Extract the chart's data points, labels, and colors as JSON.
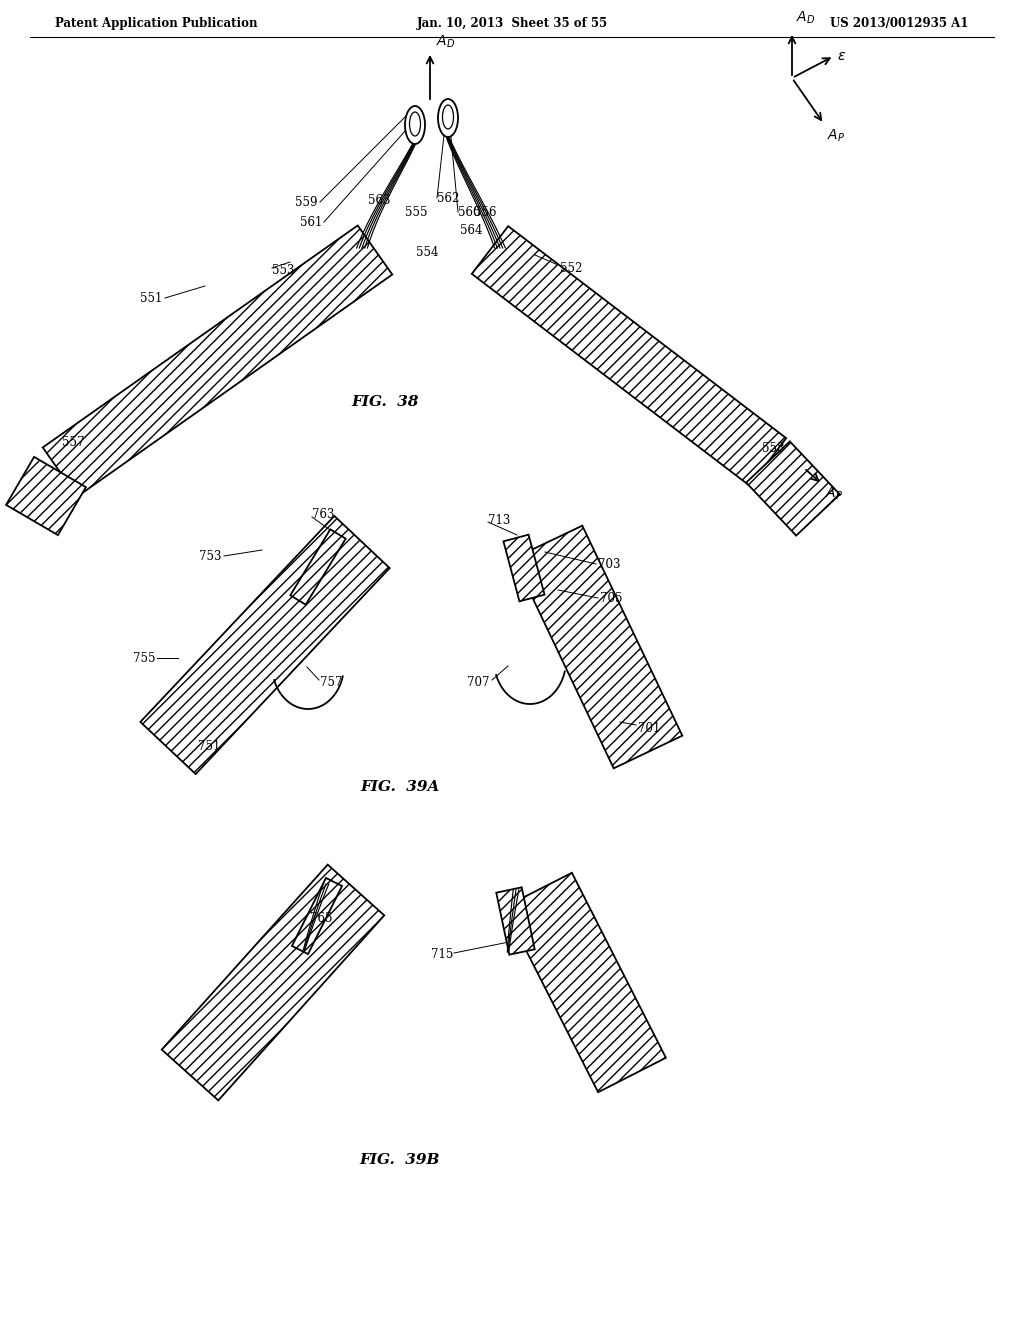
{
  "header_left": "Patent Application Publication",
  "header_center": "Jan. 10, 2013  Sheet 35 of 55",
  "header_right": "US 2013/0012935 A1",
  "fig38_label": "FIG.  38",
  "fig39a_label": "FIG.  39A",
  "fig39b_label": "FIG.  39B",
  "bg": "#ffffff",
  "lc": "#000000"
}
